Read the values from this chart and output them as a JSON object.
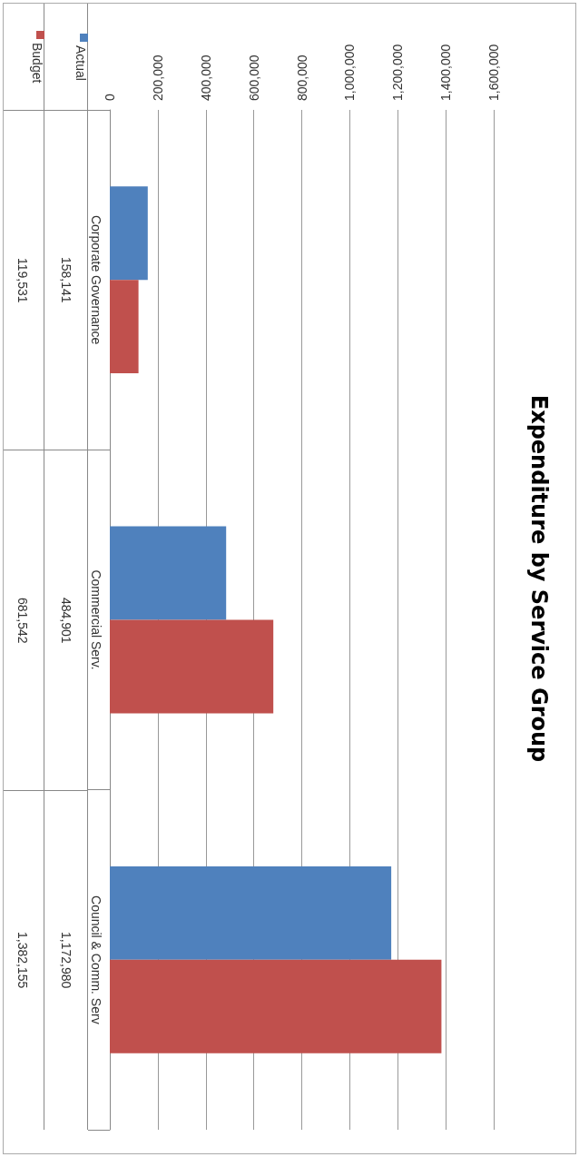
{
  "chart_data": {
    "type": "bar",
    "title": "Expenditure by Service Group",
    "orientation": "horizontal",
    "categories": [
      "Corporate Governance",
      "Commercial Serv.",
      "Council & Comm. Serv"
    ],
    "series": [
      {
        "name": "Actual",
        "color": "#4f81bd",
        "values": [
          158141,
          484901,
          1172980
        ],
        "value_labels": [
          "158,141",
          "484,901",
          "1,172,980"
        ]
      },
      {
        "name": "Budget",
        "color": "#c0504d",
        "values": [
          119531,
          681542,
          1382155
        ],
        "value_labels": [
          "119,531",
          "681,542",
          "1,382,155"
        ]
      }
    ],
    "xlim": [
      0,
      1600000
    ],
    "xticks": [
      0,
      {
        "value": 200000,
        "label": "200,000"
      },
      {
        "value": 400000,
        "label": "400,000"
      },
      {
        "value": 600000,
        "label": "600,000"
      },
      {
        "value": 800000,
        "label": "800,000"
      },
      {
        "value": 1000000,
        "label": "1,000,000"
      },
      {
        "value": 1200000,
        "label": "1,200,000"
      },
      {
        "value": 1400000,
        "label": "1,400,000"
      },
      {
        "value": 1600000,
        "label": "1,600,000"
      }
    ],
    "grid": "x",
    "legend": "top left"
  }
}
